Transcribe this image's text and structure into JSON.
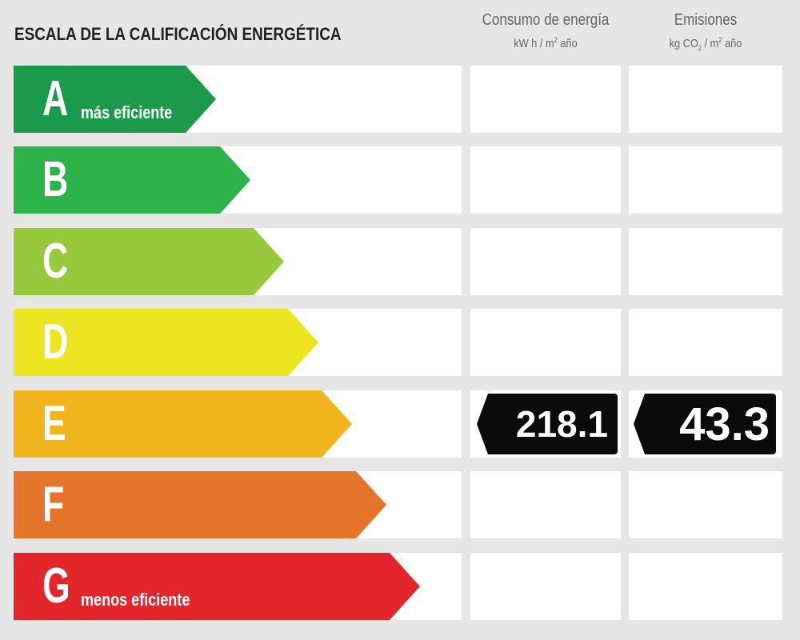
{
  "title": "ESCALA DE LA CALIFICACIÓN ENERGÉTICA",
  "columns": {
    "consumo": {
      "title": "Consumo de energía",
      "unit_prefix": "kW h / m",
      "unit_sup": "2",
      "unit_suffix": " año"
    },
    "emisiones": {
      "title": "Emisiones",
      "unit_a": "kg CO",
      "unit_sub": "2",
      "unit_b": " / m",
      "unit_sup": "2",
      "unit_suffix": " año"
    }
  },
  "ratings": [
    {
      "letter": "A",
      "sublabel": "más eficiente",
      "color": "#1a9a4a"
    },
    {
      "letter": "B",
      "sublabel": "",
      "color": "#2db34a"
    },
    {
      "letter": "C",
      "sublabel": "",
      "color": "#98c93c"
    },
    {
      "letter": "D",
      "sublabel": "",
      "color": "#ece51f"
    },
    {
      "letter": "E",
      "sublabel": "",
      "color": "#f0b41c"
    },
    {
      "letter": "F",
      "sublabel": "",
      "color": "#e4752a"
    },
    {
      "letter": "G",
      "sublabel": "menos eficiente",
      "color": "#e2262c"
    }
  ],
  "current_rating": "E",
  "values": {
    "consumo": "218.1",
    "emisiones": "43.3"
  }
}
